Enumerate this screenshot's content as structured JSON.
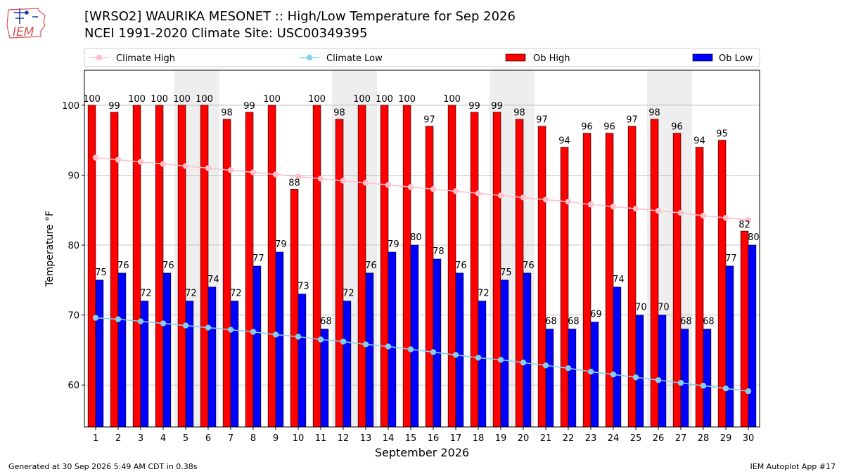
{
  "header": {
    "logo_text": "IEM",
    "title": "[WRSO2] WAURIKA MESONET :: High/Low Temperature for Sep 2026",
    "subtitle": "NCEI 1991-2020 Climate Site: USC00349395"
  },
  "footer": {
    "generated": "Generated at 30 Sep 2026 5:49 AM CDT in 0.38s",
    "app": "IEM Autoplot App #17"
  },
  "colors": {
    "climate_high": "#ffc0cb",
    "climate_low": "#87ceeb",
    "ob_high": "#ff0000",
    "ob_low": "#0000ff",
    "weekend_shade": "#eeeeee",
    "grid": "#b0b0b0"
  },
  "chart_data": {
    "type": "bar",
    "xlabel": "September 2026",
    "ylabel": "Temperature °F",
    "ylim": [
      54,
      105
    ],
    "yticks": [
      60,
      70,
      80,
      90,
      100
    ],
    "grid": "horizontal",
    "legend_position": "top",
    "categories": [
      "1",
      "2",
      "3",
      "4",
      "5",
      "6",
      "7",
      "8",
      "9",
      "10",
      "11",
      "12",
      "13",
      "14",
      "15",
      "16",
      "17",
      "18",
      "19",
      "20",
      "21",
      "22",
      "23",
      "24",
      "25",
      "26",
      "27",
      "28",
      "29",
      "30"
    ],
    "shaded_days": [
      5,
      6,
      12,
      13,
      19,
      20,
      26,
      27
    ],
    "series": [
      {
        "name": "Ob High",
        "kind": "bar",
        "values": [
          100,
          99,
          100,
          100,
          100,
          100,
          98,
          99,
          100,
          88,
          100,
          98,
          100,
          100,
          100,
          97,
          100,
          99,
          99,
          98,
          97,
          94,
          96,
          96,
          97,
          98,
          96,
          94,
          95,
          82
        ],
        "labels": [
          "100",
          "99",
          "100",
          "100",
          "100",
          "100",
          "98",
          "99",
          "100",
          "88",
          "100",
          "98",
          "100",
          "100",
          "100",
          "97",
          "100",
          "99",
          "99",
          "98",
          "97",
          "94",
          "96",
          "96",
          "97",
          "98",
          "96",
          "94",
          "95",
          "82"
        ]
      },
      {
        "name": "Ob Low",
        "kind": "bar",
        "values": [
          75,
          76,
          72,
          76,
          72,
          74,
          72,
          77,
          79,
          73,
          68,
          72,
          76,
          79,
          80,
          78,
          76,
          72,
          75,
          76,
          68,
          68,
          69,
          74,
          70,
          70,
          68,
          68,
          77,
          80
        ],
        "labels": [
          "75",
          "76",
          "72",
          "76",
          "72",
          "74",
          "72",
          "77",
          "79",
          "73",
          "68",
          "72",
          "76",
          "79",
          "80",
          "78",
          "76",
          "72",
          "75",
          "76",
          "68",
          "68",
          "69",
          "74",
          "70",
          "70",
          "68",
          "68",
          "77",
          "80"
        ]
      },
      {
        "name": "Climate High",
        "kind": "line",
        "values": [
          92.5,
          92.2,
          91.9,
          91.6,
          91.3,
          91.0,
          90.7,
          90.4,
          90.1,
          89.8,
          89.5,
          89.2,
          88.9,
          88.6,
          88.3,
          88.0,
          87.7,
          87.4,
          87.1,
          86.8,
          86.5,
          86.2,
          85.8,
          85.5,
          85.2,
          84.9,
          84.6,
          84.2,
          83.9,
          83.6
        ]
      },
      {
        "name": "Climate Low",
        "kind": "line",
        "values": [
          69.6,
          69.4,
          69.1,
          68.8,
          68.5,
          68.2,
          67.9,
          67.6,
          67.2,
          66.9,
          66.5,
          66.2,
          65.8,
          65.5,
          65.1,
          64.7,
          64.3,
          63.9,
          63.6,
          63.2,
          62.8,
          62.4,
          61.9,
          61.5,
          61.1,
          60.7,
          60.3,
          59.9,
          59.5,
          59.1
        ]
      }
    ]
  }
}
